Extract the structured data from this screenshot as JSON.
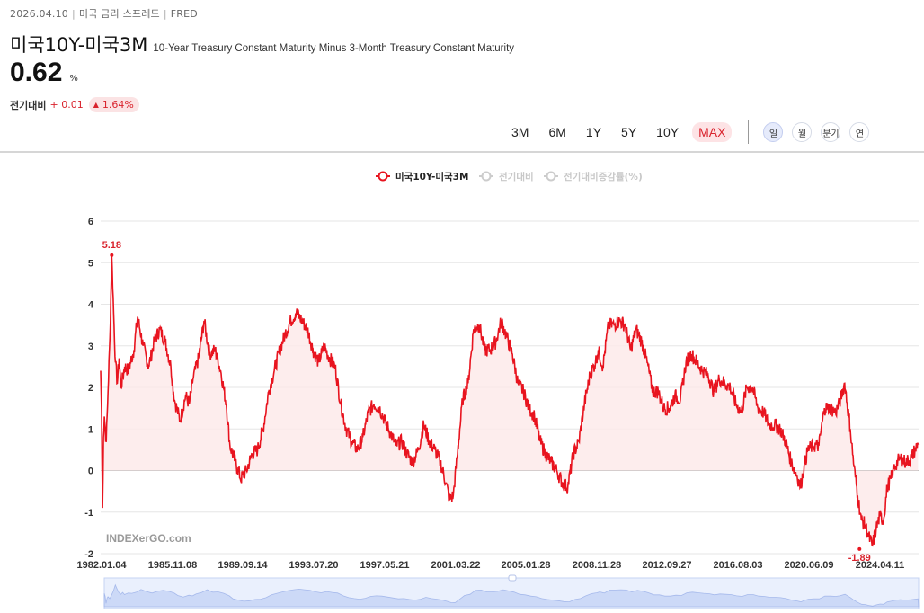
{
  "header": {
    "date": "2026.04.10",
    "category": "미국 금리 스프레드",
    "source": "FRED",
    "title": "미국10Y-미국3M",
    "subtitle": "10-Year Treasury Constant Maturity Minus 3-Month Treasury Constant Maturity",
    "value": "0.62",
    "unit": "%",
    "change_label": "전기대비",
    "change_value": "+ 0.01",
    "change_pct": "1.64%"
  },
  "range_buttons": [
    {
      "label": "3M",
      "active": false
    },
    {
      "label": "6M",
      "active": false
    },
    {
      "label": "1Y",
      "active": false
    },
    {
      "label": "5Y",
      "active": false
    },
    {
      "label": "10Y",
      "active": false
    },
    {
      "label": "MAX",
      "active": true
    }
  ],
  "freq_buttons": [
    {
      "label": "일",
      "active": true
    },
    {
      "label": "월",
      "active": false
    },
    {
      "label": "분기",
      "active": false
    },
    {
      "label": "연",
      "active": false
    }
  ],
  "colors": {
    "line": "#e8141f",
    "area": "#fde8e8",
    "accent": "#d9232d",
    "navigator": "#c9d7f7"
  },
  "chart_data": {
    "type": "line",
    "legend": [
      "미국10Y-미국3M",
      "전기대비",
      "전기대비증감률(%)"
    ],
    "legend_active": [
      true,
      false,
      false
    ],
    "legend_placement": "top-center",
    "ylim": [
      -2,
      6
    ],
    "yticks": [
      -2,
      -1,
      0,
      1,
      2,
      3,
      4,
      5,
      6
    ],
    "xticks": [
      "1982.01.04",
      "1985.11.08",
      "1989.09.14",
      "1993.07.20",
      "1997.05.21",
      "2001.03.22",
      "2005.01.28",
      "2008.11.28",
      "2012.09.27",
      "2016.08.03",
      "2020.06.09",
      "2024.04.11"
    ],
    "grid": true,
    "annotations": {
      "max": "5.18",
      "min": "-1.89"
    },
    "watermark": "INDEXerGO.com",
    "series": [
      {
        "name": "미국10Y-미국3M",
        "x": [
          1982.0,
          1982.05,
          1982.1,
          1982.15,
          1982.2,
          1982.3,
          1982.4,
          1982.5,
          1982.6,
          1982.7,
          1982.8,
          1982.9,
          1983.0,
          1983.1,
          1983.3,
          1983.5,
          1983.8,
          1984.0,
          1984.3,
          1984.6,
          1984.9,
          1985.2,
          1985.5,
          1985.8,
          1986.0,
          1986.3,
          1986.6,
          1986.8,
          1987.0,
          1987.3,
          1987.6,
          1987.9,
          1988.2,
          1988.5,
          1988.8,
          1989.0,
          1989.3,
          1989.6,
          1989.9,
          1990.2,
          1990.5,
          1990.8,
          1991.1,
          1991.4,
          1991.7,
          1992.0,
          1992.3,
          1992.6,
          1992.9,
          1993.2,
          1993.5,
          1993.8,
          1994.1,
          1994.4,
          1994.7,
          1995.0,
          1995.3,
          1995.6,
          1995.9,
          1996.2,
          1996.5,
          1996.8,
          1997.1,
          1997.4,
          1997.7,
          1998.0,
          1998.3,
          1998.6,
          1998.9,
          1999.2,
          1999.5,
          1999.8,
          2000.1,
          2000.4,
          2000.7,
          2000.9,
          2001.1,
          2001.3,
          2001.6,
          2001.9,
          2002.2,
          2002.5,
          2002.8,
          2003.1,
          2003.4,
          2003.7,
          2004.0,
          2004.3,
          2004.6,
          2004.9,
          2005.2,
          2005.5,
          2005.8,
          2006.1,
          2006.4,
          2006.7,
          2007.0,
          2007.3,
          2007.6,
          2007.9,
          2008.2,
          2008.5,
          2008.8,
          2008.95,
          2009.2,
          2009.5,
          2009.8,
          2010.1,
          2010.4,
          2010.7,
          2011.0,
          2011.3,
          2011.6,
          2011.9,
          2012.2,
          2012.5,
          2012.8,
          2013.1,
          2013.4,
          2013.7,
          2014.0,
          2014.3,
          2014.6,
          2014.9,
          2015.2,
          2015.5,
          2015.8,
          2016.1,
          2016.4,
          2016.7,
          2017.0,
          2017.3,
          2017.6,
          2017.9,
          2018.2,
          2018.5,
          2018.8,
          2019.1,
          2019.4,
          2019.7,
          2019.9,
          2020.1,
          2020.3,
          2020.6,
          2020.9,
          2021.2,
          2021.5,
          2021.8,
          2022.0,
          2022.3,
          2022.6,
          2022.8,
          2023.0,
          2023.2,
          2023.4,
          2023.6,
          2023.8,
          2024.0,
          2024.2,
          2024.4,
          2024.6,
          2024.8,
          2025.0,
          2025.3,
          2025.6,
          2025.9,
          2026.1,
          2026.27
        ],
        "values": [
          2.4,
          1.4,
          -0.9,
          0.8,
          1.3,
          0.7,
          1.9,
          3.2,
          5.18,
          3.8,
          2.6,
          2.1,
          2.7,
          2.0,
          2.5,
          2.4,
          2.9,
          3.7,
          3.0,
          2.5,
          3.1,
          3.4,
          3.1,
          2.5,
          1.7,
          1.2,
          1.8,
          1.6,
          2.2,
          2.7,
          3.6,
          2.8,
          2.9,
          2.4,
          1.6,
          0.6,
          0.2,
          -0.2,
          0.0,
          0.4,
          0.5,
          1.0,
          1.9,
          2.4,
          2.9,
          3.3,
          3.6,
          3.8,
          3.6,
          3.4,
          2.9,
          2.6,
          3.0,
          2.7,
          2.5,
          1.6,
          1.0,
          0.7,
          0.5,
          0.8,
          1.4,
          1.6,
          1.5,
          1.2,
          0.9,
          0.6,
          0.7,
          0.4,
          0.2,
          0.5,
          1.1,
          0.7,
          0.5,
          0.2,
          -0.3,
          -0.7,
          -0.6,
          0.3,
          1.7,
          2.1,
          3.4,
          3.5,
          2.9,
          2.9,
          3.1,
          3.6,
          3.2,
          2.8,
          2.1,
          1.9,
          1.5,
          1.3,
          0.7,
          0.4,
          0.2,
          0.0,
          -0.3,
          -0.4,
          0.4,
          0.7,
          1.6,
          2.3,
          2.6,
          2.9,
          2.5,
          3.5,
          3.5,
          3.6,
          3.5,
          2.9,
          3.4,
          3.1,
          2.6,
          1.9,
          1.9,
          1.5,
          1.5,
          1.8,
          1.7,
          2.6,
          2.8,
          2.6,
          2.4,
          2.3,
          1.9,
          2.2,
          2.1,
          2.0,
          1.6,
          1.4,
          2.0,
          2.0,
          1.5,
          1.4,
          1.1,
          1.1,
          1.0,
          0.7,
          0.2,
          -0.1,
          -0.4,
          0.1,
          0.5,
          0.6,
          0.6,
          1.5,
          1.5,
          1.4,
          1.6,
          2.1,
          1.0,
          0.1,
          -0.6,
          -1.2,
          -1.3,
          -1.6,
          -1.8,
          -1.4,
          -1.1,
          -1.2,
          -0.4,
          -0.2,
          0.1,
          0.3,
          0.2,
          0.3,
          0.5,
          0.62
        ]
      }
    ]
  }
}
